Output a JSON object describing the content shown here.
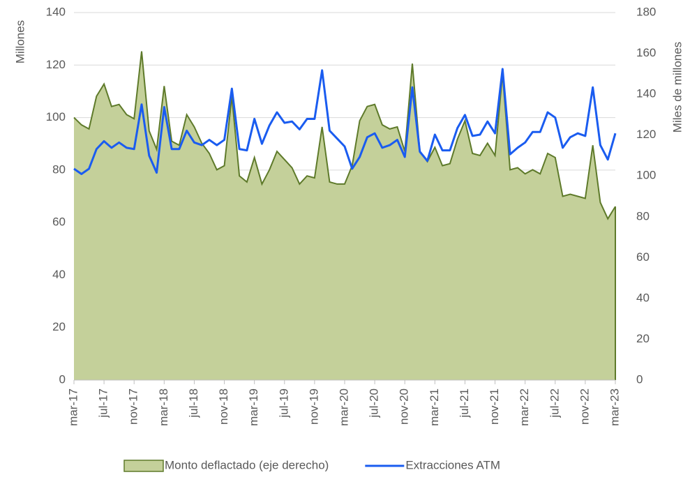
{
  "chart_data": {
    "type": "line-area",
    "y_label": "Millones",
    "y2_label": "Miles de millones",
    "categories": [
      "mar-17",
      null,
      null,
      null,
      "jul-17",
      null,
      null,
      null,
      "nov-17",
      null,
      null,
      null,
      "mar-18",
      null,
      null,
      null,
      "jul-18",
      null,
      null,
      null,
      "nov-18",
      null,
      null,
      null,
      "mar-19",
      null,
      null,
      null,
      "jul-19",
      null,
      null,
      null,
      "nov-19",
      null,
      null,
      null,
      "mar-20",
      null,
      null,
      null,
      "jul-20",
      null,
      null,
      null,
      "nov-20",
      null,
      null,
      null,
      "mar-21",
      null,
      null,
      null,
      "jul-21",
      null,
      null,
      null,
      "nov-21",
      null,
      null,
      null,
      "mar-22",
      null,
      null,
      null,
      "jul-22",
      null,
      null,
      null,
      "nov-22",
      null,
      null,
      null,
      "mar-23"
    ],
    "series": [
      {
        "name": "Monto deflactado (eje derecho)",
        "kind": "area",
        "axis": "y2",
        "color": "#c4d09a",
        "edge_color": "#5e7a2a",
        "values": [
          128.6,
          125,
          123,
          139,
          145,
          134,
          135,
          130,
          128,
          161,
          122,
          113,
          144,
          117,
          115,
          130,
          124,
          116,
          111,
          103,
          105,
          139,
          100,
          97,
          109,
          96,
          103,
          112,
          108,
          104,
          96,
          100,
          99,
          124,
          97,
          96,
          96,
          105,
          127,
          134,
          135,
          125,
          123,
          124,
          112,
          155,
          112,
          107,
          114,
          105,
          106,
          118,
          127,
          111,
          110,
          116,
          110,
          150,
          103,
          104,
          101,
          103,
          101,
          111,
          109,
          90,
          91,
          90,
          89,
          115,
          87,
          79,
          85
        ]
      },
      {
        "name": "Extracciones ATM",
        "kind": "line",
        "axis": "y",
        "color": "#1a5cf0",
        "values": [
          80.5,
          78.5,
          80.5,
          88,
          91,
          88.5,
          90.5,
          88.5,
          88,
          105,
          85.5,
          79,
          104,
          88,
          88,
          95,
          90.5,
          89.5,
          91.5,
          89.5,
          91.5,
          111,
          88,
          87.5,
          99.5,
          90,
          97,
          102,
          98,
          98.5,
          95.5,
          99.5,
          99.5,
          118,
          95,
          92,
          89,
          80.5,
          85,
          92.5,
          94,
          88.5,
          89.5,
          91.5,
          85,
          111.5,
          87,
          83.5,
          93.5,
          87.5,
          87.5,
          96,
          101,
          93,
          93.5,
          98.5,
          94,
          118.5,
          86,
          88.5,
          90.5,
          94.5,
          94.5,
          102,
          100,
          88.5,
          92.5,
          94,
          93,
          111.5,
          89.5,
          84,
          94
        ]
      }
    ],
    "ylim": [
      0,
      140
    ],
    "yticks": [
      0,
      20,
      40,
      60,
      80,
      100,
      120,
      140
    ],
    "y2lim": [
      0,
      180
    ],
    "y2ticks": [
      0,
      20,
      40,
      60,
      80,
      100,
      120,
      140,
      160,
      180
    ],
    "grid": true,
    "legend": "bottom"
  }
}
